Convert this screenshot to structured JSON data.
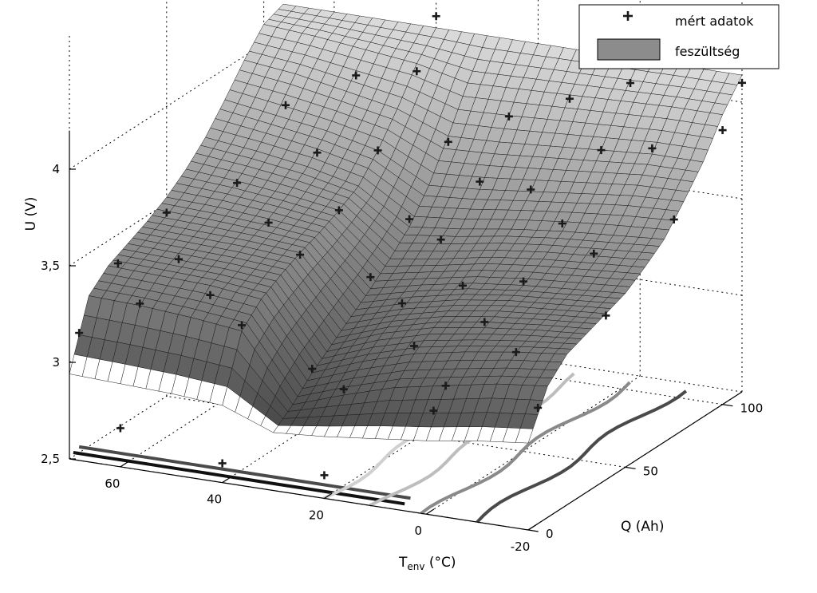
{
  "chart_data": {
    "type": "surface3d",
    "title": "",
    "axes": {
      "z": {
        "label": "U (V)",
        "ticks": [
          "2,5",
          "3",
          "3,5",
          "4"
        ],
        "range": [
          2.5,
          4.2
        ]
      },
      "x": {
        "label_main": "T",
        "label_sub": "env",
        "label_unit": " (°C)",
        "ticks": [
          "60",
          "40",
          "20",
          "0",
          "-20"
        ],
        "range": [
          -20,
          70
        ]
      },
      "y": {
        "label": "Q (Ah)",
        "ticks": [
          "0",
          "50",
          "100"
        ],
        "range": [
          0,
          110
        ]
      }
    },
    "grid": true,
    "legend": {
      "position": "top-right",
      "entries": [
        {
          "label": "mért adatok",
          "marker": "plus",
          "color": "#1a1a1a"
        },
        {
          "label": "feszültség",
          "marker": "surface",
          "color": "#8c8c8c"
        }
      ]
    },
    "series": [
      {
        "kind": "surface",
        "temperatures": [
          -20,
          -10,
          0,
          10,
          20,
          30,
          40,
          50,
          60,
          70
        ],
        "q": [
          0,
          10,
          20,
          30,
          40,
          50,
          60,
          70,
          80,
          90,
          100,
          110
        ],
        "u": [
          [
            2.95,
            3.18,
            3.28,
            3.32,
            3.36,
            3.4,
            3.47,
            3.55,
            3.68,
            3.82,
            4.0,
            4.14
          ],
          [
            2.92,
            3.15,
            3.25,
            3.3,
            3.34,
            3.38,
            3.45,
            3.53,
            3.67,
            3.82,
            4.0,
            4.14
          ],
          [
            2.88,
            3.1,
            3.21,
            3.27,
            3.32,
            3.36,
            3.43,
            3.51,
            3.64,
            3.8,
            3.99,
            4.14
          ],
          [
            2.85,
            3.05,
            3.16,
            3.23,
            3.28,
            3.33,
            3.4,
            3.48,
            3.61,
            3.78,
            3.98,
            4.14
          ],
          [
            2.82,
            2.97,
            3.08,
            3.16,
            3.22,
            3.28,
            3.35,
            3.44,
            3.58,
            3.76,
            3.97,
            4.14
          ],
          [
            2.8,
            2.88,
            2.98,
            3.06,
            3.14,
            3.22,
            3.31,
            3.41,
            3.56,
            3.75,
            3.96,
            4.14
          ],
          [
            2.9,
            3.22,
            3.32,
            3.38,
            3.43,
            3.47,
            3.52,
            3.58,
            3.7,
            3.85,
            4.02,
            4.14
          ],
          [
            2.92,
            3.25,
            3.35,
            3.4,
            3.45,
            3.5,
            3.56,
            3.64,
            3.76,
            3.9,
            4.05,
            4.14
          ],
          [
            2.93,
            3.27,
            3.36,
            3.41,
            3.46,
            3.52,
            3.59,
            3.68,
            3.8,
            3.95,
            4.08,
            4.14
          ],
          [
            2.94,
            3.28,
            3.37,
            3.42,
            3.47,
            3.53,
            3.61,
            3.71,
            3.84,
            3.98,
            4.1,
            4.14
          ]
        ]
      },
      {
        "kind": "scatter",
        "name": "mért adatok",
        "points": [
          [
            -20,
            5,
            3.1
          ],
          [
            -20,
            40,
            3.35
          ],
          [
            -20,
            75,
            3.62
          ],
          [
            -20,
            100,
            3.92
          ],
          [
            -20,
            110,
            4.1
          ],
          [
            -10,
            20,
            3.25
          ],
          [
            -10,
            60,
            3.5
          ],
          [
            -10,
            90,
            3.85
          ],
          [
            0,
            10,
            3.1
          ],
          [
            0,
            30,
            3.3
          ],
          [
            0,
            50,
            3.38
          ],
          [
            0,
            70,
            3.55
          ],
          [
            0,
            90,
            3.8
          ],
          [
            0,
            105,
            4.05
          ],
          [
            10,
            20,
            3.2
          ],
          [
            10,
            45,
            3.35
          ],
          [
            10,
            80,
            3.62
          ],
          [
            10,
            100,
            3.96
          ],
          [
            20,
            10,
            3.0
          ],
          [
            20,
            40,
            3.25
          ],
          [
            20,
            60,
            3.45
          ],
          [
            20,
            80,
            3.62
          ],
          [
            20,
            95,
            3.86
          ],
          [
            30,
            20,
            3.0
          ],
          [
            30,
            50,
            3.28
          ],
          [
            30,
            70,
            3.45
          ],
          [
            30,
            90,
            3.72
          ],
          [
            40,
            10,
            3.25
          ],
          [
            40,
            40,
            3.42
          ],
          [
            40,
            60,
            3.52
          ],
          [
            40,
            80,
            3.7
          ],
          [
            40,
            100,
            3.98
          ],
          [
            50,
            20,
            3.3
          ],
          [
            50,
            50,
            3.48
          ],
          [
            50,
            75,
            3.68
          ],
          [
            50,
            95,
            3.95
          ],
          [
            60,
            10,
            3.28
          ],
          [
            60,
            30,
            3.38
          ],
          [
            60,
            60,
            3.58
          ],
          [
            60,
            85,
            3.82
          ],
          [
            70,
            5,
            3.12
          ],
          [
            70,
            25,
            3.35
          ],
          [
            70,
            50,
            3.45
          ],
          [
            60,
            0,
            2.7
          ],
          [
            40,
            0,
            2.6
          ],
          [
            20,
            0,
            2.62
          ],
          [
            10,
            30,
            2.8
          ],
          [
            40,
            110,
            4.2
          ],
          [
            -10,
            110,
            4.2
          ]
        ]
      },
      {
        "kind": "projected-curves",
        "colors": [
          "#111111",
          "#4a4a4a",
          "#8a8a8a",
          "#bdbdbd",
          "#d0d0d0"
        ]
      }
    ]
  }
}
